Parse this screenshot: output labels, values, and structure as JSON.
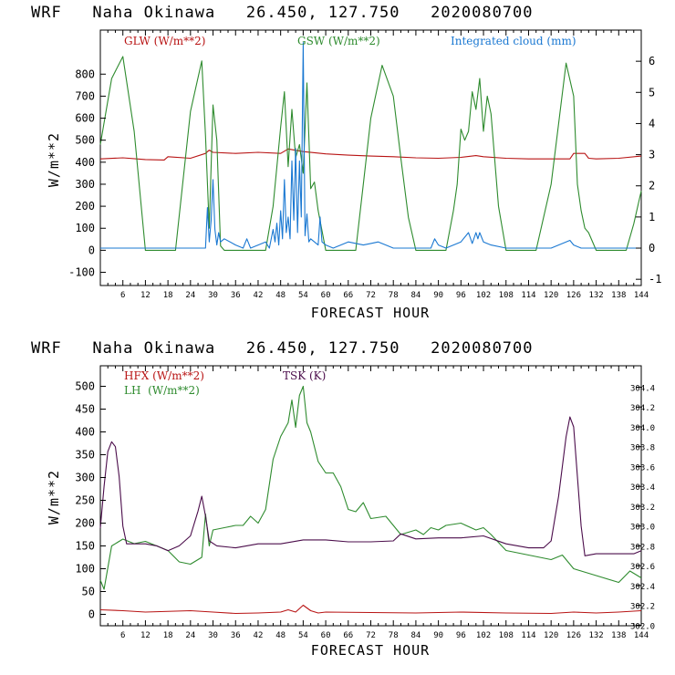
{
  "chart_data": [
    {
      "type": "line",
      "title": "WRF   Naha Okinawa   26.450, 127.750   2020080700",
      "xlabel": "FORECAST HOUR",
      "ylabel": "W/m**2",
      "xlim": [
        0,
        144
      ],
      "ylim": [
        -160,
        1000
      ],
      "y2lim": [
        -1.2,
        7.0
      ],
      "x_ticks": [
        6,
        12,
        18,
        24,
        30,
        36,
        42,
        48,
        54,
        60,
        66,
        72,
        78,
        84,
        90,
        96,
        102,
        108,
        114,
        120,
        126,
        132,
        138,
        144
      ],
      "y_ticks": [
        -100,
        0,
        100,
        200,
        300,
        400,
        500,
        600,
        700,
        800
      ],
      "y2_ticks": [
        -1,
        0,
        1,
        2,
        3,
        4,
        5,
        6
      ],
      "series": [
        {
          "name": "GLW (W/m**2)",
          "axis": "left",
          "color": "#b81414",
          "x": [
            0,
            6,
            12,
            17,
            18,
            24,
            28,
            29,
            30,
            36,
            42,
            48,
            50,
            54,
            60,
            66,
            72,
            78,
            84,
            90,
            96,
            100,
            102,
            108,
            114,
            120,
            124,
            125,
            126,
            129,
            130,
            132,
            138,
            144
          ],
          "y": [
            415,
            420,
            412,
            410,
            425,
            418,
            440,
            455,
            445,
            440,
            445,
            440,
            460,
            448,
            438,
            432,
            428,
            425,
            420,
            418,
            422,
            430,
            425,
            418,
            415,
            415,
            415,
            415,
            440,
            440,
            418,
            415,
            418,
            428
          ]
        },
        {
          "name": "GSW (W/m**2)",
          "axis": "left",
          "color": "#2e8b2e",
          "x": [
            0,
            3,
            6,
            9,
            12,
            20,
            24,
            27,
            28,
            29,
            30,
            31,
            32,
            33,
            36,
            40,
            44,
            46,
            48,
            49,
            50,
            51,
            52,
            53,
            54,
            55,
            56,
            57,
            58,
            60,
            68,
            70,
            72,
            75,
            78,
            80,
            82,
            84,
            92,
            94,
            95,
            96,
            97,
            98,
            99,
            100,
            101,
            102,
            103,
            104,
            106,
            108,
            116,
            120,
            124,
            126,
            127,
            128,
            129,
            130,
            132,
            140,
            142,
            144
          ],
          "y": [
            480,
            780,
            880,
            540,
            0,
            0,
            630,
            860,
            520,
            100,
            660,
            500,
            20,
            0,
            0,
            0,
            0,
            200,
            560,
            720,
            380,
            640,
            420,
            480,
            350,
            760,
            280,
            310,
            180,
            0,
            0,
            300,
            600,
            840,
            700,
            420,
            150,
            0,
            0,
            180,
            300,
            550,
            500,
            540,
            720,
            640,
            780,
            540,
            700,
            620,
            200,
            0,
            0,
            300,
            850,
            700,
            300,
            180,
            100,
            80,
            0,
            0,
            120,
            270
          ]
        },
        {
          "name": "Integrated cloud (mm)",
          "axis": "right",
          "color": "#1a78d2",
          "x": [
            0,
            28,
            28.5,
            29,
            29.5,
            30,
            30.5,
            31,
            31.5,
            32,
            33,
            36,
            38,
            39,
            40,
            42,
            44,
            45,
            46,
            46.5,
            47,
            47.5,
            48,
            48.5,
            49,
            49.5,
            50,
            50.5,
            51,
            51.5,
            52,
            52.5,
            53,
            53.5,
            54,
            54.5,
            55,
            55.5,
            56,
            58,
            58.5,
            59,
            60,
            62,
            66,
            70,
            72,
            74,
            76,
            78,
            84,
            88,
            89,
            90,
            92,
            94,
            96,
            98,
            99,
            100,
            100.5,
            101,
            102,
            104,
            108,
            112,
            120,
            124,
            125,
            126,
            128,
            130,
            132,
            144
          ],
          "y": [
            0,
            0,
            1.3,
            0.2,
            0.9,
            2.2,
            0.6,
            0.1,
            0.5,
            0.2,
            0.3,
            0.1,
            0,
            0.3,
            0,
            0.1,
            0.2,
            0,
            0.6,
            0.2,
            0.8,
            0.1,
            1.2,
            0.3,
            2.2,
            0.5,
            1.0,
            0.3,
            2.8,
            0.9,
            3.2,
            0.5,
            2.8,
            1.0,
            6.6,
            0.4,
            1.1,
            0.2,
            0.3,
            0.1,
            1.0,
            0.2,
            0.1,
            0,
            0.2,
            0.1,
            0.15,
            0.2,
            0.1,
            0,
            0,
            0,
            0.3,
            0.1,
            0,
            0.1,
            0.2,
            0.5,
            0.15,
            0.5,
            0.3,
            0.5,
            0.2,
            0.1,
            0,
            0,
            0,
            0.2,
            0.25,
            0.1,
            0,
            0,
            0,
            0
          ]
        }
      ]
    },
    {
      "type": "line",
      "title": "WRF   Naha Okinawa   26.450, 127.750   2020080700",
      "xlabel": "FORECAST HOUR",
      "ylabel": "W/m**2",
      "xlim": [
        0,
        144
      ],
      "ylim": [
        -25,
        545
      ],
      "y2lim": [
        301.994,
        304.616
      ],
      "x_ticks": [
        6,
        12,
        18,
        24,
        30,
        36,
        42,
        48,
        54,
        60,
        66,
        72,
        78,
        84,
        90,
        96,
        102,
        108,
        114,
        120,
        126,
        132,
        138,
        144
      ],
      "y_ticks": [
        0,
        50,
        100,
        150,
        200,
        250,
        300,
        350,
        400,
        450,
        500
      ],
      "y2_ticks": [
        302.0,
        302.2,
        302.4,
        302.6,
        302.8,
        303.0,
        303.2,
        303.4,
        303.6,
        303.8,
        304.0,
        304.2,
        304.4
      ],
      "series": [
        {
          "name": "HFX (W/m**2)",
          "axis": "left",
          "color": "#b81414",
          "x": [
            0,
            6,
            12,
            24,
            30,
            36,
            42,
            48,
            50,
            52,
            54,
            56,
            58,
            60,
            72,
            84,
            96,
            108,
            120,
            126,
            132,
            138,
            144
          ],
          "y": [
            10,
            8,
            5,
            8,
            5,
            2,
            3,
            5,
            10,
            5,
            20,
            8,
            3,
            5,
            4,
            3,
            5,
            3,
            2,
            5,
            3,
            5,
            8
          ]
        },
        {
          "name": "LH  (W/m**2)",
          "axis": "left",
          "color": "#2e8b2e",
          "x": [
            0,
            1,
            3,
            6,
            9,
            12,
            15,
            18,
            21,
            24,
            27,
            28,
            29,
            30,
            33,
            36,
            38,
            40,
            42,
            44,
            46,
            48,
            50,
            51,
            52,
            53,
            54,
            55,
            56,
            58,
            60,
            62,
            64,
            66,
            68,
            70,
            72,
            76,
            80,
            84,
            86,
            88,
            90,
            92,
            96,
            100,
            102,
            104,
            108,
            114,
            120,
            123,
            126,
            128,
            132,
            138,
            141,
            144
          ],
          "y": [
            75,
            55,
            150,
            165,
            155,
            160,
            150,
            140,
            115,
            110,
            125,
            220,
            150,
            185,
            190,
            195,
            195,
            215,
            200,
            230,
            340,
            390,
            420,
            470,
            410,
            480,
            500,
            420,
            400,
            335,
            310,
            310,
            280,
            230,
            225,
            245,
            210,
            215,
            175,
            185,
            175,
            190,
            185,
            195,
            200,
            185,
            190,
            175,
            140,
            130,
            120,
            130,
            100,
            95,
            85,
            70,
            95,
            80
          ]
        },
        {
          "name": "TSK (K)",
          "axis": "right",
          "color": "#4b0d4b",
          "x": [
            0,
            1,
            2,
            3,
            4,
            5,
            6,
            7,
            9,
            12,
            15,
            18,
            21,
            24,
            26,
            27,
            28,
            29,
            31,
            36,
            42,
            48,
            54,
            60,
            66,
            72,
            78,
            80,
            84,
            90,
            96,
            102,
            108,
            114,
            118,
            120,
            122,
            123,
            124,
            125,
            126,
            127,
            128,
            129,
            132,
            138,
            142,
            144
          ],
          "y": [
            302.98,
            303.4,
            303.75,
            303.85,
            303.8,
            303.5,
            303.0,
            302.82,
            302.82,
            302.82,
            302.8,
            302.75,
            302.8,
            302.9,
            303.15,
            303.3,
            303.1,
            302.85,
            302.8,
            302.78,
            302.82,
            302.82,
            302.86,
            302.86,
            302.84,
            302.84,
            302.85,
            302.92,
            302.87,
            302.88,
            302.88,
            302.9,
            302.82,
            302.78,
            302.78,
            302.85,
            303.3,
            303.6,
            303.9,
            304.1,
            304.0,
            303.5,
            303.0,
            302.7,
            302.72,
            302.72,
            302.72,
            302.75
          ]
        }
      ]
    }
  ]
}
